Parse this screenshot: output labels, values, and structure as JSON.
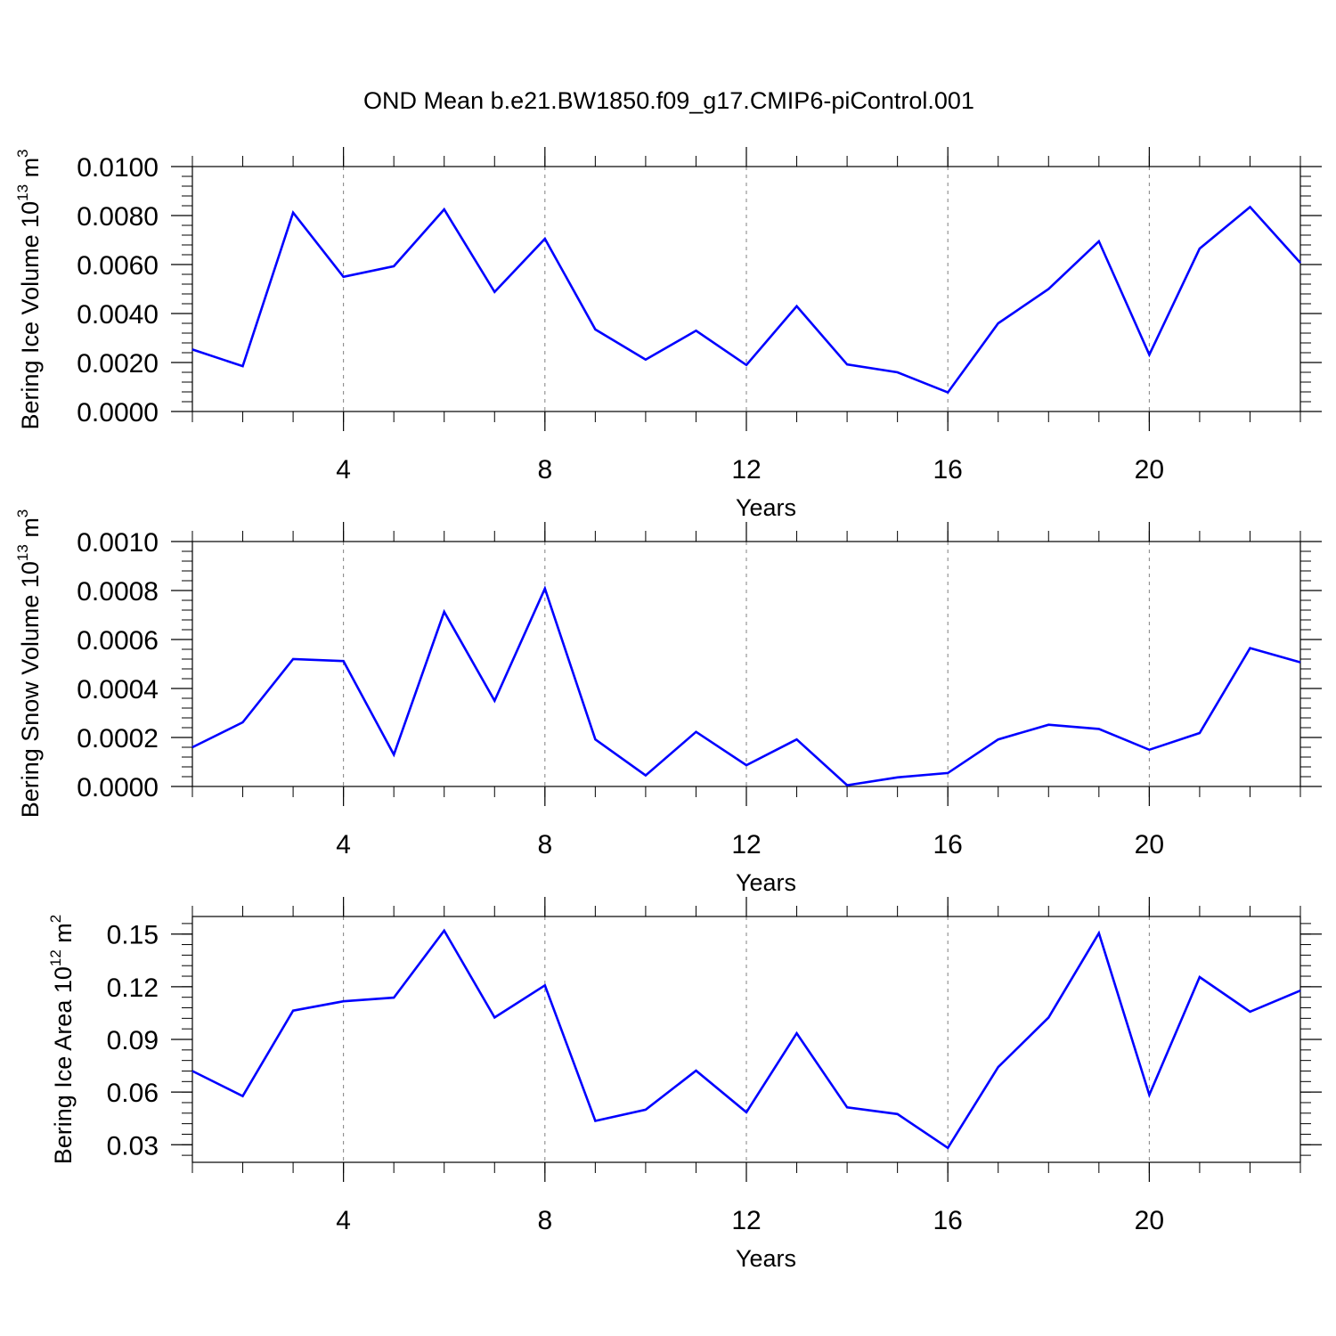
{
  "title": "OND Mean b.e21.BW1850.f09_g17.CMIP6-piControl.001",
  "colors": {
    "series": "#0000ff",
    "frame": "#000000",
    "grid": "#808080"
  },
  "chart_data": [
    {
      "type": "line",
      "grid": "vertical dashed at major x ticks",
      "ylabel": {
        "text": "Bering Ice Volume 10",
        "sup": "13",
        "unit": " m",
        "unit_sup": "3"
      },
      "xlabel": "Years",
      "xlim": [
        1,
        23
      ],
      "ylim": [
        0,
        0.01
      ],
      "x_ticks": [
        "4",
        "8",
        "12",
        "16",
        "20"
      ],
      "y_ticks": [
        "0.0000",
        "0.0020",
        "0.0040",
        "0.0060",
        "0.0080",
        "0.0100"
      ],
      "x": [
        1,
        2,
        3,
        4,
        5,
        6,
        7,
        8,
        9,
        10,
        11,
        12,
        13,
        14,
        15,
        16,
        17,
        18,
        19,
        20,
        21,
        22,
        23
      ],
      "values": [
        0.00253,
        0.00185,
        0.00812,
        0.0055,
        0.00593,
        0.00825,
        0.00488,
        0.00705,
        0.00335,
        0.00212,
        0.0033,
        0.0019,
        0.0043,
        0.00192,
        0.0016,
        0.00078,
        0.0036,
        0.005,
        0.00695,
        0.00232,
        0.00665,
        0.00835,
        0.00607
      ]
    },
    {
      "type": "line",
      "grid": "vertical dashed at major x ticks",
      "ylabel": {
        "text": "Bering Snow Volume 10",
        "sup": "13",
        "unit": " m",
        "unit_sup": "3"
      },
      "xlabel": "Years",
      "xlim": [
        1,
        23
      ],
      "ylim": [
        0,
        0.001
      ],
      "x_ticks": [
        "4",
        "8",
        "12",
        "16",
        "20"
      ],
      "y_ticks": [
        "0.0000",
        "0.0002",
        "0.0004",
        "0.0006",
        "0.0008",
        "0.0010"
      ],
      "x": [
        1,
        2,
        3,
        4,
        5,
        6,
        7,
        8,
        9,
        10,
        11,
        12,
        13,
        14,
        15,
        16,
        17,
        18,
        19,
        20,
        21,
        22,
        23
      ],
      "values": [
        0.00016,
        0.000262,
        0.00052,
        0.000512,
        0.00013,
        0.000713,
        0.00035,
        0.000808,
        0.000192,
        4.5e-05,
        0.000223,
        8.7e-05,
        0.000192,
        5e-06,
        3.7e-05,
        5.5e-05,
        0.000192,
        0.000252,
        0.000235,
        0.00015,
        0.000218,
        0.000565,
        0.000507
      ]
    },
    {
      "type": "line",
      "grid": "vertical dashed at major x ticks",
      "ylabel": {
        "text": "Bering Ice Area 10",
        "sup": "12",
        "unit": " m",
        "unit_sup": "2"
      },
      "xlabel": "Years",
      "xlim": [
        1,
        23
      ],
      "ylim": [
        0.02,
        0.16
      ],
      "x_ticks": [
        "4",
        "8",
        "12",
        "16",
        "20"
      ],
      "y_ticks": [
        "0.03",
        "0.06",
        "0.09",
        "0.12",
        "0.15"
      ],
      "x": [
        1,
        2,
        3,
        4,
        5,
        6,
        7,
        8,
        9,
        10,
        11,
        12,
        13,
        14,
        15,
        16,
        17,
        18,
        19,
        20,
        21,
        22,
        23
      ],
      "values": [
        0.072,
        0.0577,
        0.1064,
        0.1117,
        0.1138,
        0.152,
        0.1025,
        0.1208,
        0.0436,
        0.05,
        0.0722,
        0.0485,
        0.0935,
        0.0513,
        0.0475,
        0.0282,
        0.0742,
        0.1025,
        0.1505,
        0.0584,
        0.1255,
        0.1058,
        0.1178
      ]
    }
  ]
}
